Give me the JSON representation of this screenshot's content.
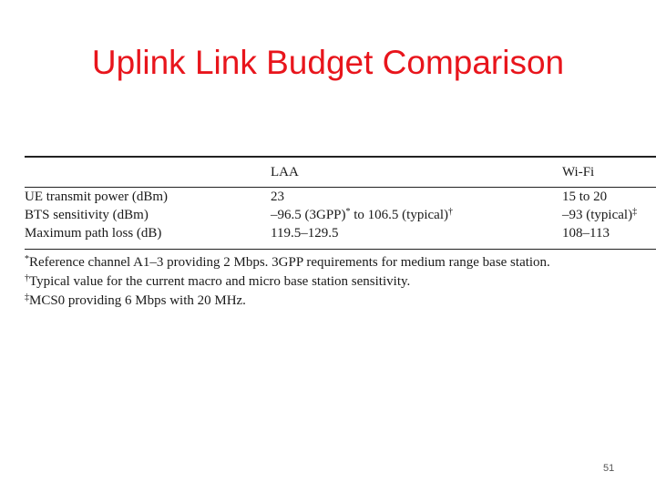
{
  "slide": {
    "title": "Uplink Link Budget Comparison",
    "page_number": "51"
  },
  "table": {
    "headers": [
      "",
      "LAA",
      "Wi-Fi"
    ],
    "rows": [
      {
        "label": "UE transmit power (dBm)",
        "laa": "23",
        "laa_mark": "",
        "laa_tail": "",
        "laa_tail_mark": "",
        "wifi": "15 to 20",
        "wifi_mark": ""
      },
      {
        "label": "BTS sensitivity (dBm)",
        "laa": "–96.5 (3GPP)",
        "laa_mark": "*",
        "laa_tail": " to 106.5 (typical)",
        "laa_tail_mark": "†",
        "wifi": "–93 (typical)",
        "wifi_mark": "‡"
      },
      {
        "label": "Maximum path loss (dB)",
        "laa": "119.5–129.5",
        "laa_mark": "",
        "laa_tail": "",
        "laa_tail_mark": "",
        "wifi": "108–113",
        "wifi_mark": ""
      }
    ],
    "footnotes": [
      {
        "mark": "*",
        "text": "Reference channel A1–3 providing 2 Mbps. 3GPP requirements for medium range base station."
      },
      {
        "mark": "†",
        "text": "Typical value for the current macro and micro base station sensitivity."
      },
      {
        "mark": "‡",
        "text": "MCS0 providing 6 Mbps with 20 MHz."
      }
    ]
  }
}
